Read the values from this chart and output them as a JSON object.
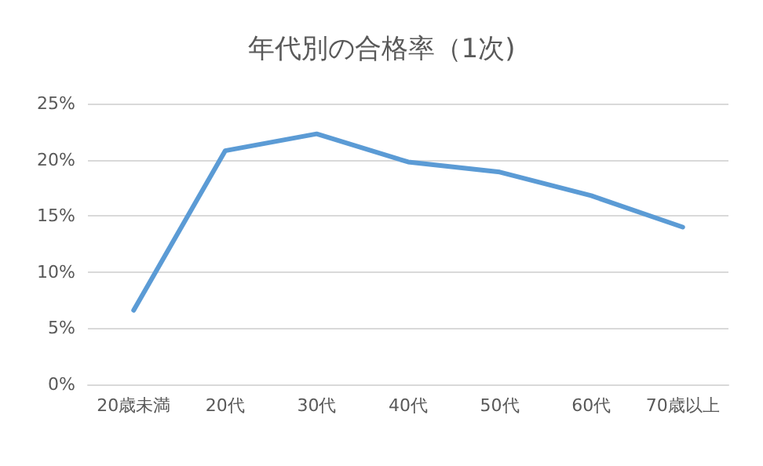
{
  "chart_data": {
    "type": "line",
    "title": "年代別の合格率（1次)",
    "categories": [
      "20歳未満",
      "20代",
      "30代",
      "40代",
      "50代",
      "60代",
      "70歳以上"
    ],
    "series": [
      {
        "color": "#5b9bd5",
        "values": [
          6.6,
          20.8,
          22.3,
          19.8,
          18.9,
          16.8,
          14.0
        ]
      }
    ],
    "ylim": [
      0,
      25
    ],
    "yticks": [
      {
        "value": 0,
        "label": "0%"
      },
      {
        "value": 5,
        "label": "5%"
      },
      {
        "value": 10,
        "label": "10%"
      },
      {
        "value": 15,
        "label": "15%"
      },
      {
        "value": 20,
        "label": "20%"
      },
      {
        "value": 25,
        "label": "25%"
      }
    ],
    "grid": "y",
    "marker": "none",
    "line_style": "solid"
  }
}
